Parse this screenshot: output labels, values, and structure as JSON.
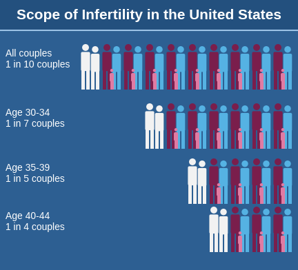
{
  "chart_data": {
    "type": "pictogram",
    "title": "Scope of Infertility in the United States",
    "categories": [
      "All couples",
      "Age 30-34",
      "Age 35-39",
      "Age 40-44"
    ],
    "values": [
      10,
      7,
      5,
      4
    ],
    "value_labels": [
      "1 in 10 couples",
      "1 in 7 couples",
      "1 in 5 couples",
      "1 in 4 couples"
    ]
  }
}
